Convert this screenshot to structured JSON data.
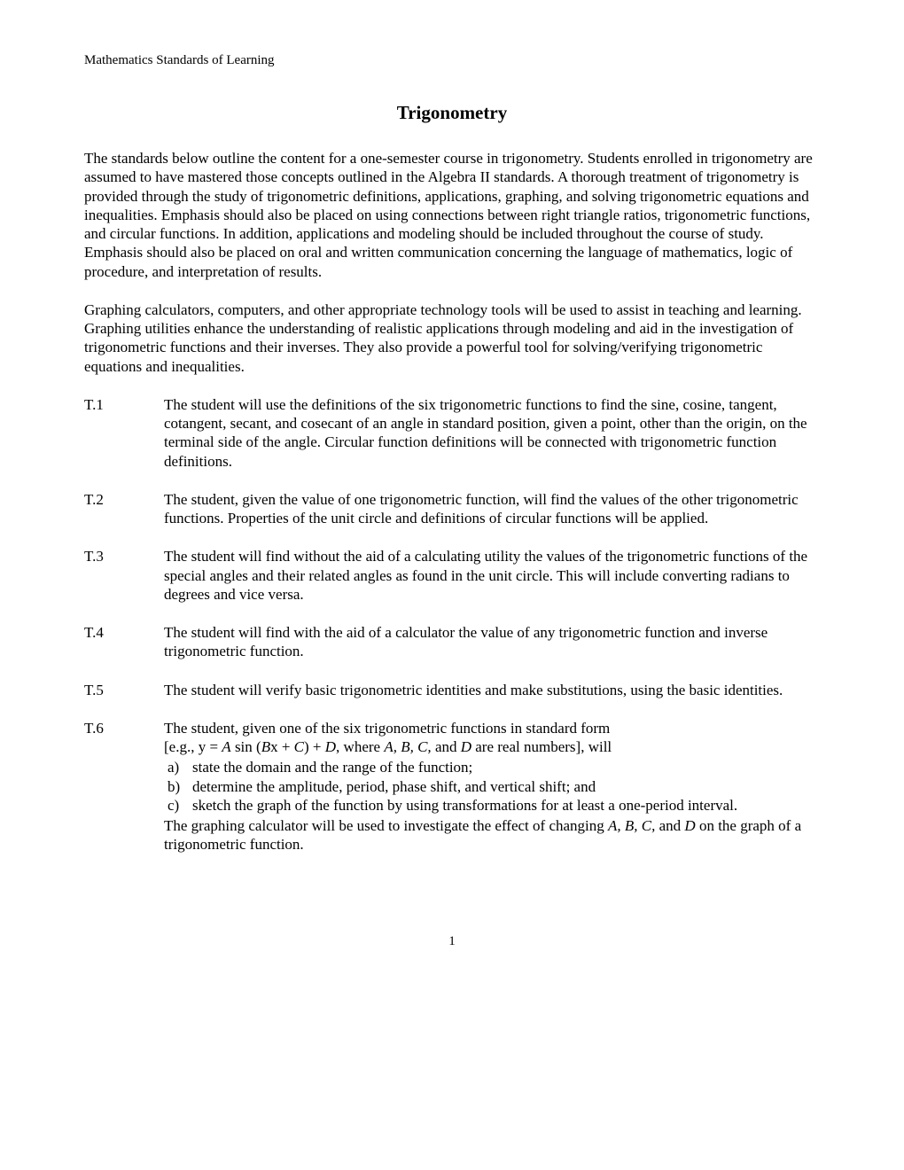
{
  "header": "Mathematics Standards of Learning",
  "title": "Trigonometry",
  "intro_paragraphs": [
    "The standards below outline the content for a one-semester course in trigonometry. Students enrolled in trigonometry are assumed to have mastered those concepts outlined in the Algebra II standards. A thorough treatment of trigonometry is provided through the study of trigonometric definitions, applications, graphing, and solving trigonometric equations and inequalities. Emphasis should also be placed on using connections between right triangle ratios, trigonometric functions, and circular functions. In addition, applications and modeling should be included throughout the course of study. Emphasis should also be placed on oral and written communication concerning the language of mathematics, logic of procedure, and interpretation of results.",
    "Graphing calculators, computers, and other appropriate technology tools will be used to assist in teaching and learning. Graphing utilities enhance the understanding of realistic applications through modeling and aid in the investigation of trigonometric functions and their inverses. They also provide a powerful tool for solving/verifying trigonometric equations and inequalities."
  ],
  "standards": [
    {
      "id": "T.1",
      "text": "The student will use the definitions of the six trigonometric functions to find the sine, cosine, tangent, cotangent, secant, and cosecant of an angle in standard position, given a point, other than the origin, on the terminal side of the angle. Circular function definitions will be connected with trigonometric function definitions."
    },
    {
      "id": "T.2",
      "text": "The student, given the value of one trigonometric function, will find the values of the other trigonometric functions. Properties of the unit circle and definitions of circular functions will be applied."
    },
    {
      "id": "T.3",
      "text": "The student will find without the aid of a calculating utility the values of the trigonometric functions of the special angles and their related angles as found in the unit circle. This will include converting radians to degrees and vice versa."
    },
    {
      "id": "T.4",
      "text": "The student will find with the aid of a calculator the value of any trigonometric function and inverse trigonometric function."
    },
    {
      "id": "T.5",
      "text": "The student will verify basic trigonometric identities and make substitutions, using the basic identities."
    }
  ],
  "t6": {
    "id": "T.6",
    "intro_line1": "The student, given one of the six trigonometric functions in standard form",
    "intro_line2_pre": "[e.g., y = ",
    "intro_line2_A": "A",
    "intro_line2_mid1": " sin (",
    "intro_line2_B": "B",
    "intro_line2_mid2": "x + ",
    "intro_line2_C": "C",
    "intro_line2_mid3": ") + ",
    "intro_line2_D": "D",
    "intro_line2_mid4": ", where ",
    "intro_line2_ABCD": "A, B, C,",
    "intro_line2_mid5": " and ",
    "intro_line2_Dtxt": "D",
    "intro_line2_post": " are real numbers], will",
    "subs": [
      {
        "letter": "a)",
        "text": "state the domain and the range of the function;"
      },
      {
        "letter": "b)",
        "text": "determine the amplitude, period, phase shift, and vertical shift; and"
      },
      {
        "letter": "c)",
        "text": "sketch the graph of the function by using transformations for at least a one-period interval."
      }
    ],
    "after_pre": "The graphing calculator will be used to investigate the effect of changing ",
    "after_ABCD": "A, B, C,",
    "after_mid": " and ",
    "after_D": "D",
    "after_post": " on the graph of a trigonometric function."
  },
  "page_number": "1"
}
